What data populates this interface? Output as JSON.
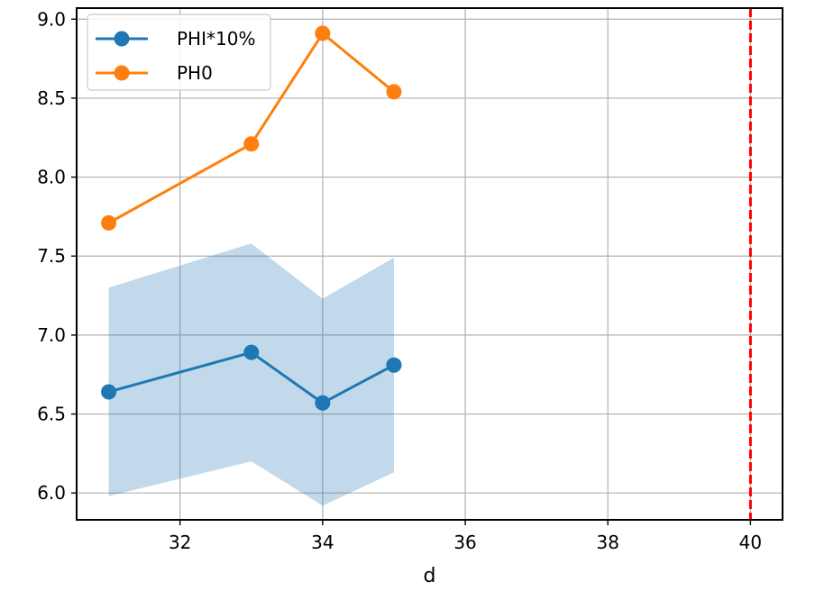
{
  "chart_data": {
    "type": "line",
    "title": "",
    "xlabel": "d",
    "ylabel": "",
    "xlim": [
      30.55,
      40.45
    ],
    "ylim": [
      5.83,
      9.07
    ],
    "x_ticks": [
      32,
      34,
      36,
      38,
      40
    ],
    "x_tick_labels": [
      "32",
      "34",
      "36",
      "38",
      "40"
    ],
    "y_ticks": [
      6.0,
      6.5,
      7.0,
      7.5,
      8.0,
      8.5,
      9.0
    ],
    "y_tick_labels": [
      "6.0",
      "6.5",
      "7.0",
      "7.5",
      "8.0",
      "8.5",
      "9.0"
    ],
    "grid": true,
    "legend_position": "top-left",
    "series": [
      {
        "name": "PHI*10%",
        "color": "#1f77b4",
        "x": [
          31,
          33,
          34,
          35
        ],
        "y": [
          6.64,
          6.89,
          6.57,
          6.81
        ]
      },
      {
        "name": "PH0",
        "color": "#ff7f0e",
        "x": [
          31,
          33,
          34,
          35
        ],
        "y": [
          7.71,
          8.21,
          8.91,
          8.54
        ]
      }
    ],
    "bands": [
      {
        "series": "PHI*10%",
        "color": "#1f77b4",
        "opacity": 0.28,
        "x": [
          31,
          33,
          34,
          35
        ],
        "lower": [
          5.98,
          6.2,
          5.92,
          6.13
        ],
        "upper": [
          7.3,
          7.58,
          7.23,
          7.49
        ]
      }
    ],
    "vlines": [
      {
        "x": 40,
        "color": "#ff0000",
        "style": "dashed"
      }
    ]
  }
}
